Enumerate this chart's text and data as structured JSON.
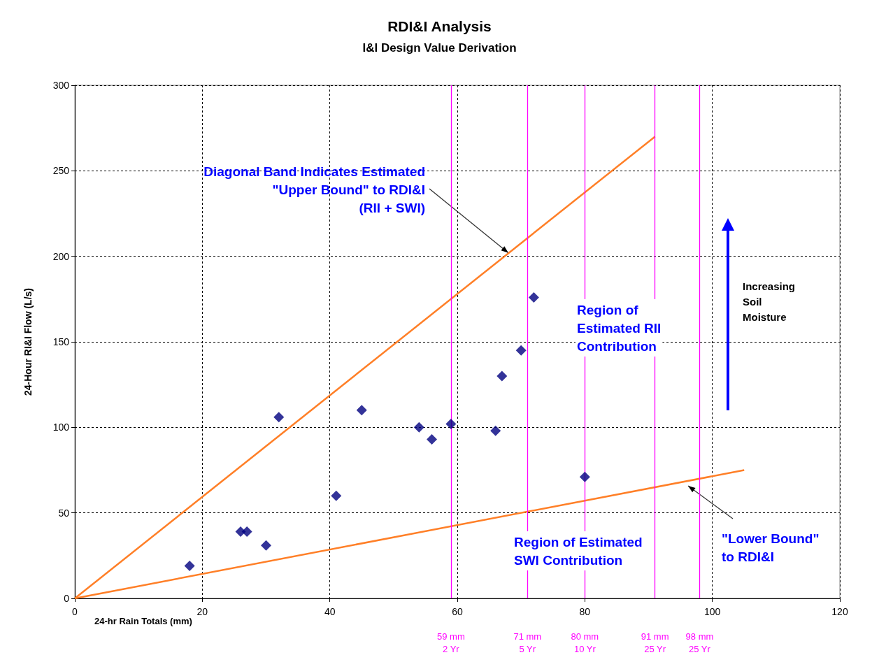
{
  "chart_data": {
    "type": "scatter",
    "title": "RDI&I Analysis",
    "subtitle": "I&I Design Value Derivation",
    "xlabel": "24-hr Rain Totals (mm)",
    "ylabel": "24-Hour RI&I Flow (L/s)",
    "xlim": [
      0,
      120
    ],
    "xticks": [
      0,
      20,
      40,
      60,
      80,
      100,
      120
    ],
    "ylim": [
      0,
      300
    ],
    "yticks": [
      0,
      50,
      100,
      150,
      200,
      250,
      300
    ],
    "grid": true,
    "marker": "diamond",
    "series": [
      {
        "type": "scatter",
        "color": "#000080",
        "x": [
          18,
          26,
          27,
          30,
          32,
          41,
          45,
          54,
          56,
          59,
          66,
          67,
          70,
          72,
          80
        ],
        "values": [
          19,
          39,
          39,
          31,
          106,
          60,
          110,
          100,
          93,
          102,
          98,
          130,
          145,
          176,
          71
        ]
      },
      {
        "type": "line",
        "color": "#ff7f27",
        "marker": "none",
        "x": [
          0,
          91
        ],
        "values": [
          0,
          270
        ]
      },
      {
        "type": "line",
        "color": "#ff7f27",
        "marker": "none",
        "x": [
          0,
          105
        ],
        "values": [
          0,
          75
        ]
      }
    ],
    "ref_lines": [
      {
        "axis": "x",
        "value": 59,
        "label": "59 mm\n2 Yr",
        "color": "#ff00ff"
      },
      {
        "axis": "x",
        "value": 71,
        "label": "71 mm\n5 Yr",
        "color": "#ff00ff"
      },
      {
        "axis": "x",
        "value": 80,
        "label": "80 mm\n10 Yr",
        "color": "#ff00ff"
      },
      {
        "axis": "x",
        "value": 91,
        "label": "91 mm\n25 Yr",
        "color": "#ff00ff"
      },
      {
        "axis": "x",
        "value": 98,
        "label": "98 mm\n25 Yr",
        "color": "#ff00ff"
      }
    ],
    "annotations": [
      {
        "text": "Diagonal Band Indicates Estimated\n\"Upper Bound\" to RDI&I\n(RII + SWI)",
        "x": 68,
        "y": 202
      },
      "\"Lower Bound\"\nto RDI&I",
      "Region of\nEstimated RII\nContribution",
      "Region of Estimated\nSWI Contribution",
      "Increasing\nSoil\nMoisture"
    ]
  }
}
